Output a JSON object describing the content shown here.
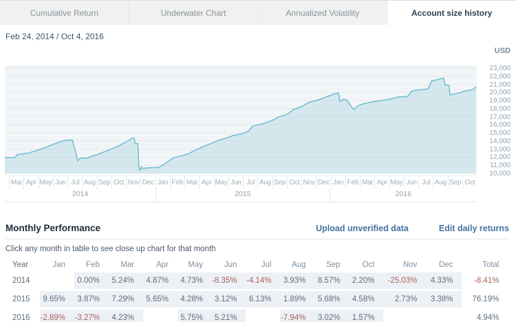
{
  "tabs": [
    {
      "label": "Cumulative Return",
      "active": false
    },
    {
      "label": "Underwater Chart",
      "active": false
    },
    {
      "label": "Annualized Volatility",
      "active": false
    },
    {
      "label": "Account size history",
      "active": true
    }
  ],
  "date_range": "Feb 24, 2014 / Oct 4, 2016",
  "chart_data": {
    "type": "area",
    "title": "Account size history",
    "unit_label": "USD",
    "ylim": [
      10000,
      23000
    ],
    "y_tick_step": 1000,
    "y_ticks": [
      "23,000",
      "22,000",
      "21,000",
      "20,000",
      "19,000",
      "18,000",
      "17,000",
      "16,000",
      "15,000",
      "14,000",
      "13,000",
      "12,000",
      "11,000",
      "10,000"
    ],
    "x_months": [
      "Mar",
      "Apr",
      "May",
      "Jun",
      "Jul",
      "Aug",
      "Sep",
      "Oct",
      "Nov",
      "Dec",
      "Jan",
      "Feb",
      "Mar",
      "Apr",
      "May",
      "Jun",
      "Jul",
      "Aug",
      "Sep",
      "Oct",
      "Nov",
      "Dec",
      "Jan",
      "Feb",
      "Mar",
      "Apr",
      "May",
      "Jun",
      "Jul",
      "Aug",
      "Sep",
      "Oct"
    ],
    "x_year_groups": [
      {
        "label": "2014",
        "months": 10.3
      },
      {
        "label": "2015",
        "months": 12
      },
      {
        "label": "2016",
        "months": 10
      }
    ],
    "x_range_months": 31.4,
    "grid": true,
    "series_unit": "USD account value by month offset from Feb 24, 2014",
    "series": [
      [
        0,
        11950
      ],
      [
        0.7,
        11980
      ],
      [
        0.8,
        12300
      ],
      [
        1.6,
        12520
      ],
      [
        2.4,
        12980
      ],
      [
        3.2,
        13580
      ],
      [
        3.9,
        14040
      ],
      [
        4.3,
        14120
      ],
      [
        4.5,
        14110
      ],
      [
        4.85,
        11560
      ],
      [
        5.05,
        11920
      ],
      [
        5.35,
        11840
      ],
      [
        6.1,
        12300
      ],
      [
        6.9,
        12850
      ],
      [
        7.6,
        13420
      ],
      [
        8.1,
        13900
      ],
      [
        8.5,
        14370
      ],
      [
        8.62,
        14380
      ],
      [
        8.66,
        13720
      ],
      [
        8.85,
        13690
      ],
      [
        8.92,
        10680
      ],
      [
        9.0,
        10340
      ],
      [
        9.08,
        10830
      ],
      [
        9.15,
        10620
      ],
      [
        9.6,
        10690
      ],
      [
        10.25,
        10730
      ],
      [
        10.7,
        11250
      ],
      [
        11.2,
        11900
      ],
      [
        11.7,
        12150
      ],
      [
        12.2,
        12420
      ],
      [
        12.5,
        12700
      ],
      [
        13.2,
        13320
      ],
      [
        13.8,
        13750
      ],
      [
        14.2,
        14080
      ],
      [
        14.8,
        14400
      ],
      [
        15.2,
        14680
      ],
      [
        15.8,
        14900
      ],
      [
        16.2,
        15200
      ],
      [
        16.5,
        15850
      ],
      [
        17.2,
        16150
      ],
      [
        17.8,
        16550
      ],
      [
        18.2,
        16950
      ],
      [
        18.8,
        17300
      ],
      [
        19.2,
        17900
      ],
      [
        19.8,
        18300
      ],
      [
        20.2,
        18750
      ],
      [
        20.8,
        19050
      ],
      [
        21.2,
        19300
      ],
      [
        21.8,
        19750
      ],
      [
        22.1,
        19900
      ],
      [
        22.2,
        19920
      ],
      [
        22.3,
        18880
      ],
      [
        22.55,
        19160
      ],
      [
        22.75,
        19060
      ],
      [
        23.2,
        17880
      ],
      [
        23.5,
        18360
      ],
      [
        23.9,
        18620
      ],
      [
        24.3,
        18780
      ],
      [
        24.9,
        18960
      ],
      [
        25.6,
        19170
      ],
      [
        26.2,
        19430
      ],
      [
        26.8,
        19490
      ],
      [
        27.05,
        20160
      ],
      [
        27.5,
        20310
      ],
      [
        28.15,
        20430
      ],
      [
        28.4,
        21430
      ],
      [
        28.9,
        21620
      ],
      [
        29.2,
        21780
      ],
      [
        29.3,
        20930
      ],
      [
        29.55,
        20860
      ],
      [
        29.62,
        19690
      ],
      [
        30.1,
        19870
      ],
      [
        30.6,
        20160
      ],
      [
        31.0,
        20300
      ],
      [
        31.2,
        20400
      ],
      [
        31.35,
        20720
      ]
    ]
  },
  "performance": {
    "title": "Monthly Performance",
    "links": [
      {
        "label": "Upload unverified data"
      },
      {
        "label": "Edit daily returns"
      }
    ],
    "subtitle": "Click any month in table to see close up chart for that month",
    "table": {
      "headers": [
        "Year",
        "Jan",
        "Feb",
        "Mar",
        "Apr",
        "May",
        "Jun",
        "Jul",
        "Aug",
        "Sep",
        "Oct",
        "Nov",
        "Dec",
        "Total"
      ],
      "rows": [
        {
          "year": "2014",
          "cells": [
            "",
            "0.00%",
            "5.24%",
            "4.87%",
            "4.73%",
            "-8.35%",
            "-4.14%",
            "3.93%",
            "8.57%",
            "2.20%",
            "-25.03%",
            "4.33%"
          ],
          "total": "-8.41%"
        },
        {
          "year": "2015",
          "cells": [
            "9.65%",
            "3.87%",
            "7.29%",
            "5.65%",
            "4.28%",
            "3.12%",
            "6.13%",
            "1.89%",
            "5.68%",
            "4.58%",
            "2.73%",
            "3.38%"
          ],
          "total": "76.19%"
        },
        {
          "year": "2016",
          "cells": [
            "-2.89%",
            "-3.27%",
            "4.23%",
            "",
            "5.75%",
            "5.21%",
            "",
            "-7.94%",
            "3.02%",
            "1.57%",
            "",
            ""
          ],
          "total": "4.94%"
        }
      ]
    }
  },
  "colors": {
    "line": "#70bcd2",
    "fill": "rgba(140,196,217,0.28)",
    "plot_bg": "#f2f5f7",
    "gridline": "#e5e9ec",
    "link": "#44729f",
    "negative": "#a9605e",
    "positive": "#5d6e7d",
    "cell_bg": "#edf1f5",
    "active_tab_text": "#2e4154"
  }
}
